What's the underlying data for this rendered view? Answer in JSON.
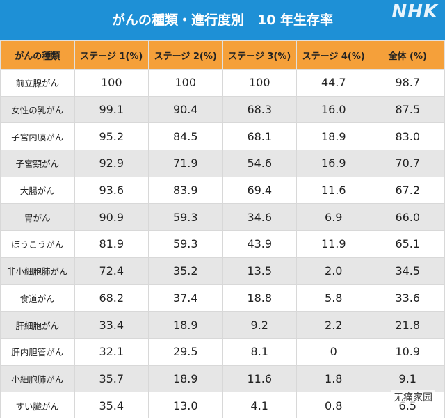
{
  "header": {
    "title": "がんの種類・進行度別　10 年生存率",
    "logo": "NHK"
  },
  "table": {
    "columns": [
      "がんの種類",
      "ステージ 1(%)",
      "ステージ 2(%)",
      "ステージ 3(%)",
      "ステージ 4(%)",
      "全体 (%)"
    ],
    "rows": [
      [
        "前立腺がん",
        "100",
        "100",
        "100",
        "44.7",
        "98.7"
      ],
      [
        "女性の乳がん",
        "99.1",
        "90.4",
        "68.3",
        "16.0",
        "87.5"
      ],
      [
        "子宮内膜がん",
        "95.2",
        "84.5",
        "68.1",
        "18.9",
        "83.0"
      ],
      [
        "子宮頸がん",
        "92.9",
        "71.9",
        "54.6",
        "16.9",
        "70.7"
      ],
      [
        "大腸がん",
        "93.6",
        "83.9",
        "69.4",
        "11.6",
        "67.2"
      ],
      [
        "胃がん",
        "90.9",
        "59.3",
        "34.6",
        "6.9",
        "66.0"
      ],
      [
        "ぼうこうがん",
        "81.9",
        "59.3",
        "43.9",
        "11.9",
        "65.1"
      ],
      [
        "非小細胞肺がん",
        "72.4",
        "35.2",
        "13.5",
        "2.0",
        "34.5"
      ],
      [
        "食道がん",
        "68.2",
        "37.4",
        "18.8",
        "5.8",
        "33.6"
      ],
      [
        "肝細胞がん",
        "33.4",
        "18.9",
        "9.2",
        "2.2",
        "21.8"
      ],
      [
        "肝内胆管がん",
        "32.1",
        "29.5",
        "8.1",
        "0",
        "10.9"
      ],
      [
        "小細胞肺がん",
        "35.7",
        "18.9",
        "11.6",
        "1.8",
        "9.1"
      ],
      [
        "すい臓がん",
        "35.4",
        "13.0",
        "4.1",
        "0.8",
        "6.5"
      ]
    ]
  },
  "watermark": "无痛家园"
}
